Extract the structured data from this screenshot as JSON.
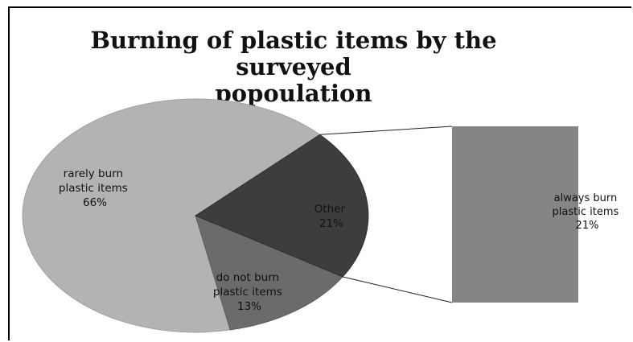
{
  "chart_data": {
    "type": "pie",
    "variant": "bar-of-pie",
    "title_line1": "Burning of plastic items by the surveyed",
    "title_line2": "popoulation",
    "slices": [
      {
        "label_line1": "rarely burn",
        "label_line2": "plastic items",
        "value_label": "66%",
        "value": 66,
        "color": "#b3b3b3"
      },
      {
        "label_line1": "do not burn",
        "label_line2": "plastic items",
        "value_label": "13%",
        "value": 13,
        "color": "#6b6b6b"
      },
      {
        "label_line1": "Other",
        "label_line2": "",
        "value_label": "21%",
        "value": 21,
        "color": "#3d3d3d"
      }
    ],
    "breakout_bar": {
      "label_line1": "always burn",
      "label_line2": "plastic items",
      "value_label": "21%",
      "value": 21,
      "color": "#858585"
    }
  }
}
